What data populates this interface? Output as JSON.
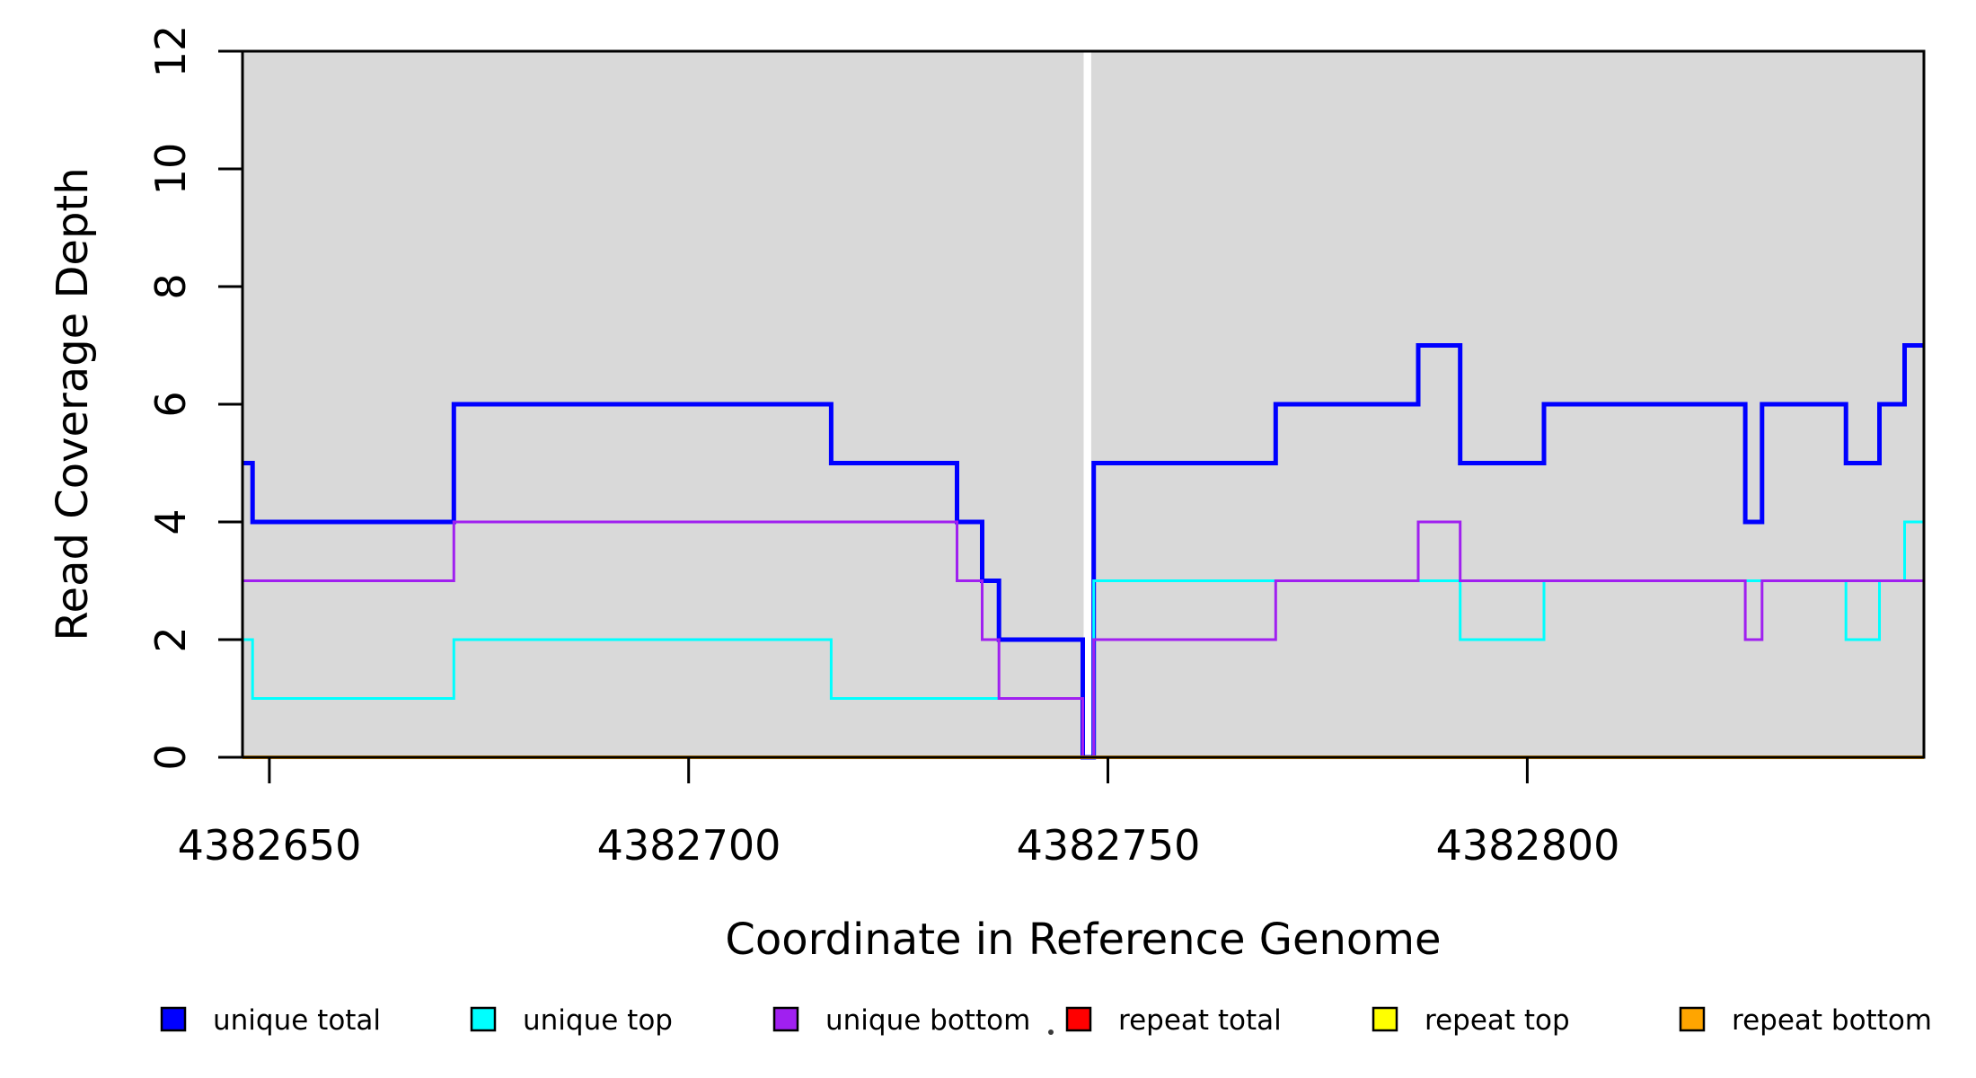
{
  "figure": {
    "background": "#ffffff",
    "panel_background": "#d9d9d9",
    "panel_border_color": "#000000",
    "gap_stripe_color": "#ffffff",
    "stray_dot_color": "#3a3a3a"
  },
  "chart_data": {
    "type": "line",
    "subtype": "step-after",
    "title": "",
    "xlabel": "Coordinate in Reference Genome",
    "ylabel": "Read Coverage Depth",
    "xlim": [
      4382646.8,
      4382847.3
    ],
    "ylim": [
      0,
      12
    ],
    "grid": "off",
    "legend_position": "bottom",
    "x_ticks": [
      {
        "value": 4382650,
        "label": "4382650"
      },
      {
        "value": 4382700,
        "label": "4382700"
      },
      {
        "value": 4382750,
        "label": "4382750"
      },
      {
        "value": 4382800,
        "label": "4382800"
      }
    ],
    "y_ticks": [
      {
        "value": 0,
        "label": "0"
      },
      {
        "value": 2,
        "label": "2"
      },
      {
        "value": 4,
        "label": "4"
      },
      {
        "value": 6,
        "label": "6"
      },
      {
        "value": 8,
        "label": "8"
      },
      {
        "value": 10,
        "label": "10"
      },
      {
        "value": 12,
        "label": "12"
      }
    ],
    "gap_region": {
      "x_start": 4382747.1,
      "x_end": 4382748.0
    },
    "series": [
      {
        "name": "unique total",
        "color": "#0000ff",
        "stroke_width": 5,
        "steps": [
          [
            4382646.8,
            5
          ],
          [
            4382648,
            4
          ],
          [
            4382672,
            6
          ],
          [
            4382717,
            5
          ],
          [
            4382732,
            4
          ],
          [
            4382735,
            3
          ],
          [
            4382737,
            2
          ],
          [
            4382747,
            0
          ],
          [
            4382748.3,
            5
          ],
          [
            4382770,
            6
          ],
          [
            4382787,
            7
          ],
          [
            4382792,
            5
          ],
          [
            4382802,
            6
          ],
          [
            4382826,
            4
          ],
          [
            4382828,
            6
          ],
          [
            4382838,
            5
          ],
          [
            4382842,
            6
          ],
          [
            4382845,
            7
          ],
          [
            4382847.3,
            7
          ]
        ]
      },
      {
        "name": "unique top",
        "color": "#00ffff",
        "stroke_width": 3,
        "steps": [
          [
            4382646.8,
            2
          ],
          [
            4382648,
            1
          ],
          [
            4382672,
            2
          ],
          [
            4382717,
            1
          ],
          [
            4382747,
            0
          ],
          [
            4382748.3,
            3
          ],
          [
            4382792,
            2
          ],
          [
            4382802,
            3
          ],
          [
            4382838,
            2
          ],
          [
            4382842,
            3
          ],
          [
            4382845,
            4
          ],
          [
            4382847.3,
            4
          ]
        ]
      },
      {
        "name": "unique bottom",
        "color": "#a020f0",
        "stroke_width": 3,
        "steps": [
          [
            4382646.8,
            3
          ],
          [
            4382672,
            4
          ],
          [
            4382732,
            3
          ],
          [
            4382735,
            2
          ],
          [
            4382737,
            1
          ],
          [
            4382747,
            0
          ],
          [
            4382748.3,
            2
          ],
          [
            4382770,
            3
          ],
          [
            4382787,
            4
          ],
          [
            4382792,
            3
          ],
          [
            4382826,
            2
          ],
          [
            4382828,
            3
          ],
          [
            4382847.3,
            3
          ]
        ]
      },
      {
        "name": "repeat total",
        "color": "#ff0000",
        "stroke_width": 3,
        "steps": [
          [
            4382646.8,
            0
          ],
          [
            4382847.3,
            0
          ]
        ]
      },
      {
        "name": "repeat top",
        "color": "#ffff00",
        "stroke_width": 3,
        "steps": [
          [
            4382646.8,
            0
          ],
          [
            4382847.3,
            0
          ]
        ]
      },
      {
        "name": "repeat bottom",
        "color": "#ffa500",
        "stroke_width": 4,
        "steps": [
          [
            4382646.8,
            0
          ],
          [
            4382847.3,
            0
          ]
        ]
      }
    ]
  }
}
